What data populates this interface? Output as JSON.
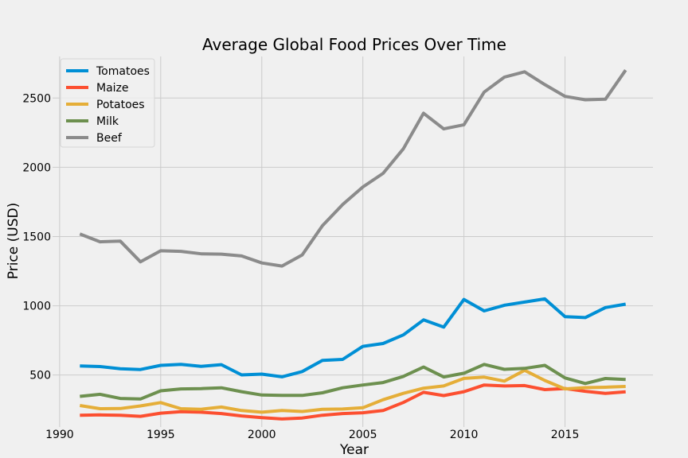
{
  "chart_data": {
    "type": "line",
    "title": "Average Global Food Prices Over Time",
    "xlabel": "Year",
    "ylabel": "Price (USD)",
    "xlim": [
      1989.65,
      2019.35
    ],
    "ylim": [
      125,
      2800
    ],
    "xticks": [
      1990,
      1995,
      2000,
      2005,
      2010,
      2015
    ],
    "yticks": [
      500,
      1000,
      1500,
      2000,
      2500
    ],
    "grid": true,
    "legend_position": "top-left",
    "x": [
      1991,
      1992,
      1993,
      1994,
      1995,
      1996,
      1997,
      1998,
      1999,
      2000,
      2001,
      2002,
      2003,
      2004,
      2005,
      2006,
      2007,
      2008,
      2009,
      2010,
      2011,
      2012,
      2013,
      2014,
      2015,
      2016,
      2017,
      2018
    ],
    "series": [
      {
        "name": "Tomatoes",
        "color": "#008fd5",
        "values": [
          565,
          561,
          545,
          540,
          570,
          577,
          563,
          575,
          501,
          507,
          487,
          525,
          606,
          613,
          707,
          728,
          790,
          898,
          846,
          1046,
          963,
          1004,
          1027,
          1050,
          921,
          915,
          987,
          1012
        ]
      },
      {
        "name": "Maize",
        "color": "#fc4f30",
        "values": [
          210,
          212,
          210,
          202,
          225,
          235,
          232,
          222,
          205,
          193,
          183,
          190,
          210,
          222,
          228,
          244,
          302,
          375,
          352,
          380,
          428,
          421,
          424,
          395,
          403,
          383,
          368,
          379
        ]
      },
      {
        "name": "Potatoes",
        "color": "#e5ae38",
        "values": [
          280,
          257,
          258,
          277,
          301,
          257,
          253,
          269,
          244,
          232,
          244,
          237,
          253,
          255,
          264,
          322,
          368,
          405,
          421,
          476,
          485,
          456,
          534,
          461,
          400,
          409,
          412,
          418
        ]
      },
      {
        "name": "Milk",
        "color": "#6d904f",
        "values": [
          346,
          361,
          331,
          327,
          386,
          400,
          402,
          408,
          380,
          356,
          353,
          353,
          372,
          408,
          428,
          446,
          490,
          558,
          486,
          513,
          577,
          541,
          548,
          570,
          479,
          439,
          475,
          468
        ]
      },
      {
        "name": "Beef",
        "color": "#8b8b8b",
        "values": [
          1519,
          1462,
          1467,
          1317,
          1397,
          1393,
          1375,
          1373,
          1360,
          1309,
          1287,
          1367,
          1578,
          1731,
          1858,
          1956,
          2133,
          2390,
          2277,
          2307,
          2543,
          2651,
          2689,
          2597,
          2512,
          2487,
          2491,
          2701
        ]
      }
    ]
  }
}
